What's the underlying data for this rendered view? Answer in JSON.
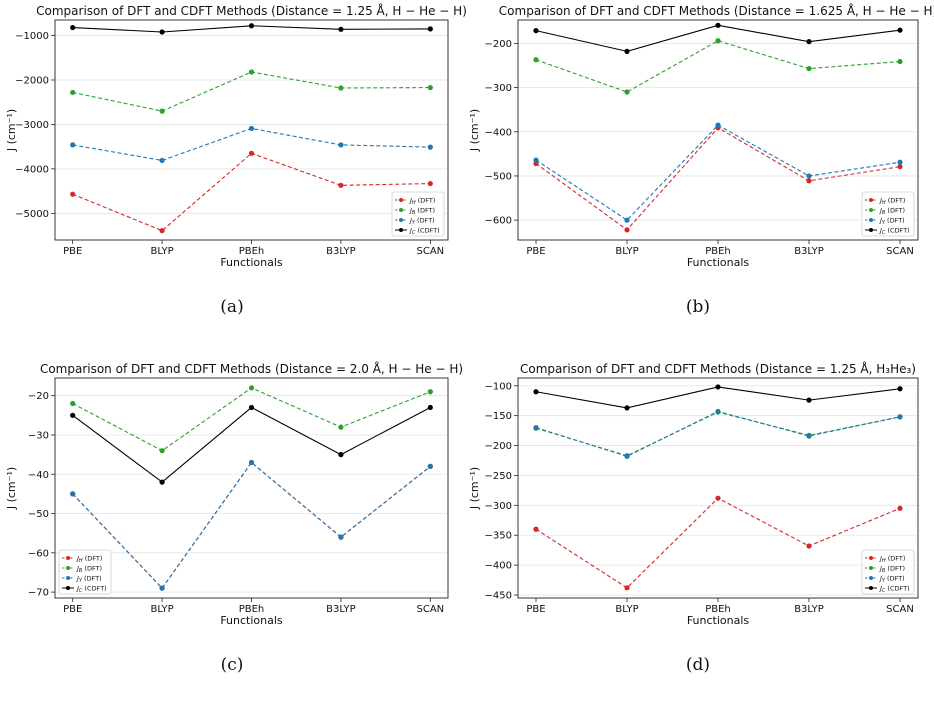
{
  "colors": {
    "J_H": "#d62728",
    "J_B": "#2ca02c",
    "J_Y": "#1f77b4",
    "J_C": "#000000"
  },
  "chart_data": [
    {
      "type": "line",
      "title": "Comparison of DFT and CDFT Methods (Distance = 1.25 Å, H − He − H)",
      "xlabel": "Functionals",
      "ylabel": "J (cm⁻¹)",
      "categories": [
        "PBE",
        "BLYP",
        "PBEh",
        "B3LYP",
        "SCAN"
      ],
      "ylim": [
        -5600,
        -650
      ],
      "yticks": [
        -5000,
        -4000,
        -3000,
        -2000,
        -1000
      ],
      "ytick_labels": [
        "−5000",
        "−4000",
        "−3000",
        "−2000",
        "−1000"
      ],
      "grid": true,
      "legend_position": "lower right",
      "series": [
        {
          "name": "J_H (DFT)",
          "color": "#d62728",
          "dashed": true,
          "values": [
            -4570,
            -5390,
            -3650,
            -4370,
            -4330
          ]
        },
        {
          "name": "J_B (DFT)",
          "color": "#2ca02c",
          "dashed": true,
          "values": [
            -2280,
            -2700,
            -1820,
            -2180,
            -2170
          ]
        },
        {
          "name": "J_Y (DFT)",
          "color": "#1f77b4",
          "dashed": true,
          "values": [
            -3460,
            -3810,
            -3090,
            -3460,
            -3510
          ]
        },
        {
          "name": "J_C (CDFT)",
          "color": "#000000",
          "dashed": false,
          "values": [
            -820,
            -920,
            -780,
            -860,
            -850
          ]
        }
      ],
      "caption": "(a)"
    },
    {
      "type": "line",
      "title": "Comparison of DFT and CDFT Methods (Distance = 1.625 Å, H − He − H)",
      "xlabel": "Functionals",
      "ylabel": "J (cm⁻¹)",
      "categories": [
        "PBE",
        "BLYP",
        "PBEh",
        "B3LYP",
        "SCAN"
      ],
      "ylim": [
        -645,
        -147
      ],
      "yticks": [
        -600,
        -500,
        -400,
        -300,
        -200
      ],
      "ytick_labels": [
        "−600",
        "−500",
        "−400",
        "−300",
        "−200"
      ],
      "grid": true,
      "legend_position": "lower right",
      "series": [
        {
          "name": "J_H (DFT)",
          "color": "#d62728",
          "dashed": true,
          "values": [
            -472,
            -622,
            -391,
            -511,
            -479
          ]
        },
        {
          "name": "J_B (DFT)",
          "color": "#2ca02c",
          "dashed": true,
          "values": [
            -237,
            -310,
            -194,
            -257,
            -241
          ]
        },
        {
          "name": "J_Y (DFT)",
          "color": "#1f77b4",
          "dashed": true,
          "values": [
            -464,
            -600,
            -385,
            -500,
            -469
          ]
        },
        {
          "name": "J_C (CDFT)",
          "color": "#000000",
          "dashed": false,
          "values": [
            -171,
            -218,
            -159,
            -196,
            -170
          ]
        }
      ],
      "caption": "(b)"
    },
    {
      "type": "line",
      "title": "Comparison of DFT and CDFT Methods (Distance = 2.0 Å, H − He − H)",
      "xlabel": "Functionals",
      "ylabel": "J (cm⁻¹)",
      "categories": [
        "PBE",
        "BLYP",
        "PBEh",
        "B3LYP",
        "SCAN"
      ],
      "ylim": [
        -71.5,
        -15.5
      ],
      "yticks": [
        -70,
        -60,
        -50,
        -40,
        -30,
        -20
      ],
      "ytick_labels": [
        "−70",
        "−60",
        "−50",
        "−40",
        "−30",
        "−20"
      ],
      "grid": true,
      "legend_position": "lower left",
      "series": [
        {
          "name": "J_H (DFT)",
          "color": "#d62728",
          "dashed": true,
          "values": [
            -45,
            -69,
            -37,
            -56,
            -38
          ]
        },
        {
          "name": "J_B (DFT)",
          "color": "#2ca02c",
          "dashed": true,
          "values": [
            -22,
            -34,
            -18,
            -28,
            -19
          ]
        },
        {
          "name": "J_Y (DFT)",
          "color": "#1f77b4",
          "dashed": true,
          "values": [
            -45,
            -69,
            -37,
            -56,
            -38
          ]
        },
        {
          "name": "J_C (CDFT)",
          "color": "#000000",
          "dashed": false,
          "values": [
            -25,
            -42,
            -23,
            -35,
            -23
          ]
        }
      ],
      "caption": "(c)"
    },
    {
      "type": "line",
      "title": "Comparison of DFT and CDFT Methods (Distance = 1.25 Å, H₃He₃)",
      "xlabel": "Functionals",
      "ylabel": "J (cm⁻¹)",
      "categories": [
        "PBE",
        "BLYP",
        "PBEh",
        "B3LYP",
        "SCAN"
      ],
      "ylim": [
        -455,
        -87
      ],
      "yticks": [
        -450,
        -400,
        -350,
        -300,
        -250,
        -200,
        -150,
        -100
      ],
      "ytick_labels": [
        "−450",
        "−400",
        "−350",
        "−300",
        "−250",
        "−200",
        "−150",
        "−100"
      ],
      "grid": true,
      "legend_position": "lower right",
      "series": [
        {
          "name": "J_H (DFT)",
          "color": "#d62728",
          "dashed": true,
          "values": [
            -340,
            -438,
            -288,
            -368,
            -305
          ]
        },
        {
          "name": "J_B (DFT)",
          "color": "#2ca02c",
          "dashed": true,
          "values": [
            -171,
            -217,
            -144,
            -183,
            -152
          ]
        },
        {
          "name": "J_Y (DFT)",
          "color": "#1f77b4",
          "dashed": true,
          "values": [
            -170,
            -218,
            -143,
            -184,
            -152
          ]
        },
        {
          "name": "J_C (CDFT)",
          "color": "#000000",
          "dashed": false,
          "values": [
            -110,
            -137,
            -102,
            -124,
            -105
          ]
        }
      ],
      "caption": "(d)"
    }
  ]
}
